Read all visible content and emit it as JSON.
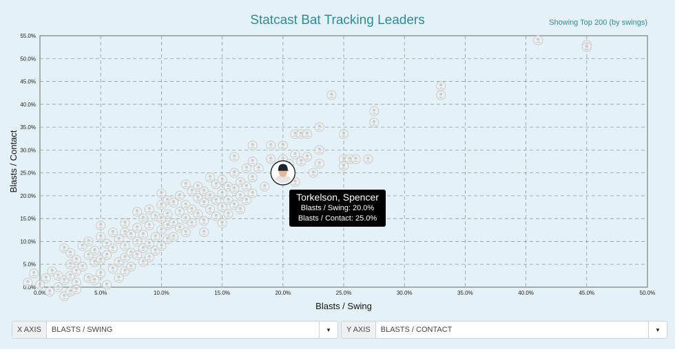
{
  "header": {
    "title": "Statcast Bat Tracking Leaders",
    "note": "Showing Top 200 (by swings)"
  },
  "tooltip": {
    "name": "Torkelson, Spencer",
    "line1": "Blasts / Swing: 20.0%",
    "line2": "Blasts / Contact: 25.0%"
  },
  "controls": {
    "x": {
      "label": "X AXIS",
      "value": "BLASTS / SWING"
    },
    "y": {
      "label": "Y AXIS",
      "value": "BLASTS / CONTACT"
    }
  },
  "colors": {
    "background": "#e4f1f6",
    "title": "#2e8b98",
    "grid": "#8a9a9e",
    "marker": "#c9c9c9"
  },
  "chart_data": {
    "type": "scatter",
    "xlabel": "Blasts / Swing",
    "ylabel": "Blasts / Contact",
    "xlim": [
      0,
      50
    ],
    "ylim": [
      0,
      55
    ],
    "xticks": [
      "0.0%",
      "5.0%",
      "10.0%",
      "15.0%",
      "20.0%",
      "25.0%",
      "30.0%",
      "35.0%",
      "40.0%",
      "45.0%",
      "50.0%"
    ],
    "yticks": [
      "0.0%",
      "5.0%",
      "10.0%",
      "15.0%",
      "20.0%",
      "25.0%",
      "30.0%",
      "35.0%",
      "40.0%",
      "45.0%",
      "50.0%",
      "55.0%"
    ],
    "grid": true,
    "highlight": {
      "x": 20.0,
      "y": 25.0
    },
    "points": [
      [
        -1.0,
        1.0
      ],
      [
        -0.5,
        3.0
      ],
      [
        0.0,
        0.5
      ],
      [
        0.5,
        2.0
      ],
      [
        0.8,
        -1.0
      ],
      [
        1.0,
        3.5
      ],
      [
        1.5,
        0.0
      ],
      [
        1.5,
        2.5
      ],
      [
        2.0,
        -2.0
      ],
      [
        2.0,
        1.5
      ],
      [
        2.5,
        -1.0
      ],
      [
        2.5,
        2.5
      ],
      [
        3.0,
        1.0
      ],
      [
        3.0,
        -0.5
      ],
      [
        2.0,
        8.5
      ],
      [
        2.5,
        5.0
      ],
      [
        2.5,
        7.5
      ],
      [
        3.0,
        6.0
      ],
      [
        3.0,
        3.5
      ],
      [
        3.5,
        9.0
      ],
      [
        3.5,
        4.5
      ],
      [
        4.0,
        10.0
      ],
      [
        4.0,
        7.0
      ],
      [
        4.0,
        2.0
      ],
      [
        4.5,
        8.0
      ],
      [
        4.5,
        5.5
      ],
      [
        4.5,
        1.5
      ],
      [
        5.0,
        13.5
      ],
      [
        5.0,
        11.0
      ],
      [
        5.0,
        6.0
      ],
      [
        5.0,
        3.0
      ],
      [
        5.5,
        9.5
      ],
      [
        5.5,
        7.0
      ],
      [
        5.5,
        0.5
      ],
      [
        6.0,
        12.0
      ],
      [
        6.0,
        4.0
      ],
      [
        6.0,
        8.5
      ],
      [
        6.5,
        10.5
      ],
      [
        6.5,
        5.5
      ],
      [
        6.5,
        2.0
      ],
      [
        7.0,
        14.0
      ],
      [
        7.0,
        12.0
      ],
      [
        7.0,
        9.0
      ],
      [
        7.0,
        6.5
      ],
      [
        7.0,
        3.5
      ],
      [
        7.5,
        11.5
      ],
      [
        7.5,
        7.5
      ],
      [
        7.5,
        4.5
      ],
      [
        8.0,
        16.5
      ],
      [
        8.0,
        13.0
      ],
      [
        8.0,
        10.0
      ],
      [
        8.0,
        7.0
      ],
      [
        8.5,
        15.0
      ],
      [
        8.5,
        11.5
      ],
      [
        8.5,
        8.5
      ],
      [
        8.5,
        5.5
      ],
      [
        9.0,
        17.0
      ],
      [
        9.0,
        13.5
      ],
      [
        9.0,
        9.5
      ],
      [
        9.0,
        6.5
      ],
      [
        9.5,
        15.5
      ],
      [
        9.5,
        11.0
      ],
      [
        9.5,
        8.0
      ],
      [
        10.0,
        20.5
      ],
      [
        10.0,
        18.0
      ],
      [
        10.0,
        15.0
      ],
      [
        10.0,
        12.5
      ],
      [
        10.0,
        9.0
      ],
      [
        10.5,
        19.0
      ],
      [
        10.5,
        16.0
      ],
      [
        10.5,
        13.5
      ],
      [
        10.5,
        10.5
      ],
      [
        11.0,
        18.5
      ],
      [
        11.0,
        14.0
      ],
      [
        11.0,
        11.0
      ],
      [
        11.5,
        20.0
      ],
      [
        11.5,
        16.5
      ],
      [
        11.5,
        13.0
      ],
      [
        12.0,
        22.5
      ],
      [
        12.0,
        18.0
      ],
      [
        12.0,
        15.0
      ],
      [
        12.0,
        12.0
      ],
      [
        12.5,
        21.0
      ],
      [
        12.5,
        17.0
      ],
      [
        12.5,
        14.0
      ],
      [
        13.0,
        22.0
      ],
      [
        13.0,
        19.5
      ],
      [
        13.0,
        16.0
      ],
      [
        13.5,
        21.0
      ],
      [
        13.5,
        18.5
      ],
      [
        13.5,
        14.5
      ],
      [
        13.5,
        12.0
      ],
      [
        14.0,
        24.0
      ],
      [
        14.0,
        20.0
      ],
      [
        14.0,
        17.0
      ],
      [
        14.5,
        22.5
      ],
      [
        14.5,
        19.0
      ],
      [
        14.5,
        15.5
      ],
      [
        15.0,
        23.5
      ],
      [
        15.0,
        20.5
      ],
      [
        15.0,
        17.5
      ],
      [
        15.0,
        14.0
      ],
      [
        15.5,
        22.0
      ],
      [
        15.5,
        19.0
      ],
      [
        15.5,
        16.0
      ],
      [
        16.0,
        28.5
      ],
      [
        16.0,
        25.0
      ],
      [
        16.0,
        21.5
      ],
      [
        16.0,
        18.0
      ],
      [
        16.5,
        23.0
      ],
      [
        16.5,
        20.0
      ],
      [
        16.5,
        17.0
      ],
      [
        17.0,
        26.0
      ],
      [
        17.0,
        22.0
      ],
      [
        17.0,
        19.0
      ],
      [
        17.5,
        31.0
      ],
      [
        17.5,
        27.5
      ],
      [
        17.5,
        24.0
      ],
      [
        17.5,
        20.5
      ],
      [
        18.0,
        26.0
      ],
      [
        18.5,
        22.0
      ],
      [
        19.0,
        31.0
      ],
      [
        19.0,
        28.0
      ],
      [
        20.0,
        31.0
      ],
      [
        20.0,
        28.0
      ],
      [
        20.5,
        27.0
      ],
      [
        21.0,
        33.5
      ],
      [
        21.0,
        29.0
      ],
      [
        21.0,
        23.0
      ],
      [
        21.5,
        33.5
      ],
      [
        21.5,
        27.5
      ],
      [
        22.0,
        33.5
      ],
      [
        22.0,
        28.5
      ],
      [
        22.5,
        25.0
      ],
      [
        23.0,
        35.0
      ],
      [
        23.0,
        30.0
      ],
      [
        23.0,
        27.0
      ],
      [
        24.0,
        42.0
      ],
      [
        25.0,
        33.5
      ],
      [
        25.0,
        28.0
      ],
      [
        25.0,
        26.5
      ],
      [
        25.5,
        28.0
      ],
      [
        26.0,
        28.0
      ],
      [
        27.0,
        28.0
      ],
      [
        27.5,
        38.5
      ],
      [
        27.5,
        36.0
      ],
      [
        33.0,
        44.0
      ],
      [
        33.0,
        42.0
      ],
      [
        41.0,
        54.0
      ],
      [
        45.0,
        53.0
      ],
      [
        45.0,
        52.5
      ]
    ]
  }
}
